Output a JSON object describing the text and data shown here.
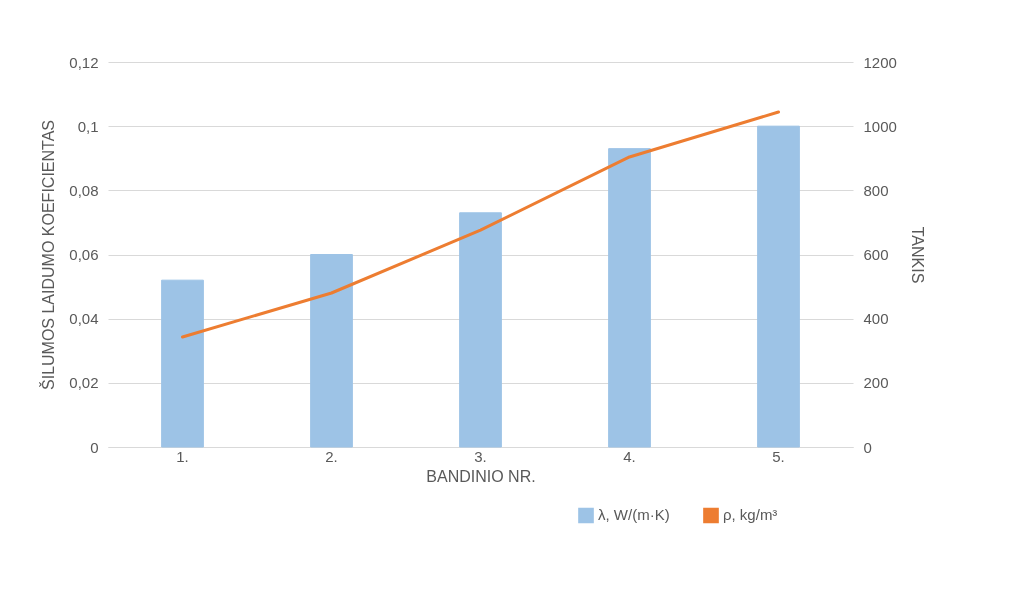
{
  "chart_data": {
    "type": "bar",
    "xlabel": "BANDINIO NR.",
    "ylabel": "ŠILUMOS LAIDUMO KOEFICIENTAS",
    "y2label": "TANKIS",
    "categories": [
      "1.",
      "2.",
      "3.",
      "4.",
      "5."
    ],
    "series": [
      {
        "name": "λ, W/(m·K)",
        "color": "#9dc3e6",
        "values": [
          0.052,
          0.06,
          0.073,
          0.093,
          0.1
        ]
      },
      {
        "name": "ρ, kg/m³",
        "type": "line",
        "axis": "y2",
        "color": "#ed7d31",
        "values": [
          343,
          480,
          676,
          904,
          1044
        ]
      }
    ],
    "ylim": [
      0,
      0.12
    ],
    "yticks": [
      0,
      {
        "value": 0.02,
        "label": "0,02"
      },
      {
        "value": 0.04,
        "label": "0,04"
      },
      {
        "value": 0.06,
        "label": "0,06"
      },
      {
        "value": 0.08,
        "label": "0,08"
      },
      {
        "value": 0.1,
        "label": "0,1"
      },
      {
        "value": 0.12,
        "label": "0,12"
      }
    ],
    "y2lim": [
      0,
      1200
    ],
    "y2ticks": [
      0,
      200,
      400,
      600,
      800,
      1000,
      1200
    ],
    "grid": "y",
    "legend": "bottom right",
    "line_style": "solid",
    "marker": "none"
  }
}
